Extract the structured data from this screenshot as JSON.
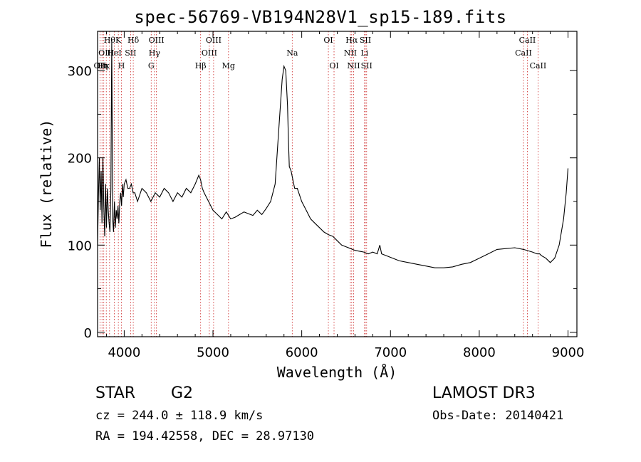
{
  "chart_data": {
    "type": "line",
    "title": "spec-56769-VB194N28V1_sp15-189.fits",
    "xlabel": "Wavelength (Å)",
    "ylabel": "Flux (relative)",
    "xlim": [
      3700,
      9100
    ],
    "ylim": [
      -5,
      345
    ],
    "xticks": [
      4000,
      5000,
      6000,
      7000,
      8000,
      9000
    ],
    "yticks": [
      0,
      100,
      200,
      300
    ],
    "xtick_labels": [
      "4000",
      "5000",
      "6000",
      "7000",
      "8000",
      "9000"
    ],
    "ytick_labels": [
      "0",
      "100",
      "200",
      "300"
    ],
    "series": [
      {
        "name": "spectrum",
        "x": [
          3700,
          3710,
          3720,
          3730,
          3740,
          3750,
          3760,
          3770,
          3780,
          3790,
          3800,
          3810,
          3820,
          3830,
          3840,
          3850,
          3860,
          3870,
          3880,
          3890,
          3900,
          3910,
          3920,
          3930,
          3940,
          3950,
          3960,
          3970,
          3980,
          3990,
          4000,
          4020,
          4040,
          4060,
          4080,
          4100,
          4120,
          4150,
          4200,
          4250,
          4300,
          4350,
          4400,
          4450,
          4500,
          4550,
          4600,
          4650,
          4700,
          4750,
          4800,
          4840,
          4860,
          4880,
          4900,
          4950,
          5000,
          5050,
          5100,
          5150,
          5200,
          5250,
          5300,
          5350,
          5400,
          5450,
          5500,
          5550,
          5600,
          5650,
          5700,
          5740,
          5760,
          5780,
          5800,
          5820,
          5840,
          5850,
          5860,
          5880,
          5900,
          5920,
          5950,
          6000,
          6050,
          6100,
          6150,
          6200,
          6250,
          6300,
          6350,
          6400,
          6450,
          6500,
          6550,
          6600,
          6650,
          6700,
          6750,
          6800,
          6850,
          6880,
          6900,
          6950,
          7000,
          7100,
          7200,
          7300,
          7400,
          7500,
          7600,
          7700,
          7800,
          7900,
          8000,
          8100,
          8200,
          8300,
          8400,
          8500,
          8600,
          8650,
          8680,
          8700,
          8750,
          8800,
          8850,
          8900,
          8950,
          8980,
          9000
        ],
        "values": [
          100,
          155,
          200,
          140,
          185,
          125,
          200,
          145,
          110,
          170,
          120,
          165,
          140,
          125,
          115,
          165,
          335,
          130,
          115,
          150,
          120,
          140,
          130,
          145,
          125,
          150,
          160,
          145,
          170,
          155,
          170,
          175,
          165,
          165,
          170,
          160,
          160,
          150,
          165,
          160,
          150,
          160,
          155,
          165,
          160,
          150,
          160,
          155,
          165,
          160,
          170,
          180,
          175,
          165,
          160,
          150,
          140,
          135,
          130,
          138,
          130,
          132,
          135,
          138,
          136,
          134,
          140,
          135,
          142,
          150,
          170,
          230,
          260,
          290,
          305,
          300,
          260,
          220,
          190,
          185,
          175,
          165,
          165,
          150,
          140,
          130,
          125,
          120,
          115,
          112,
          110,
          105,
          100,
          98,
          96,
          94,
          93,
          92,
          90,
          92,
          90,
          100,
          90,
          88,
          86,
          82,
          80,
          78,
          76,
          74,
          74,
          75,
          78,
          80,
          85,
          90,
          95,
          96,
          97,
          95,
          92,
          90,
          90,
          88,
          85,
          80,
          85,
          100,
          130,
          160,
          188
        ]
      }
    ],
    "line_annotations": [
      {
        "wl": 3727,
        "row": 2,
        "label": "OII"
      },
      {
        "wl": 3750,
        "row": 2,
        "label": "Hη"
      },
      {
        "wl": 3770,
        "row": 2,
        "label": "Hκ"
      },
      {
        "wl": 3798,
        "row": 1,
        "label": "OIII"
      },
      {
        "wl": 3835,
        "row": 0,
        "label": "Hθ"
      },
      {
        "wl": 3889,
        "row": 1,
        "label": "HeI"
      },
      {
        "wl": 3934,
        "row": 0,
        "label": "K"
      },
      {
        "wl": 3969,
        "row": 2,
        "label": "H"
      },
      {
        "wl": 4072,
        "row": 1,
        "label": "SII"
      },
      {
        "wl": 4102,
        "row": 0,
        "label": "Hδ"
      },
      {
        "wl": 4304,
        "row": 2,
        "label": "G"
      },
      {
        "wl": 4341,
        "row": 1,
        "label": "Hγ"
      },
      {
        "wl": 4363,
        "row": 0,
        "label": "OIII"
      },
      {
        "wl": 4861,
        "row": 2,
        "label": "Hβ"
      },
      {
        "wl": 4959,
        "row": 1,
        "label": "OIII"
      },
      {
        "wl": 5007,
        "row": 0,
        "label": "OIII"
      },
      {
        "wl": 5175,
        "row": 2,
        "label": "Mg"
      },
      {
        "wl": 5893,
        "row": 1,
        "label": "Na"
      },
      {
        "wl": 6300,
        "row": 0,
        "label": "OI"
      },
      {
        "wl": 6364,
        "row": 2,
        "label": "OI"
      },
      {
        "wl": 6548,
        "row": 1,
        "label": "NII"
      },
      {
        "wl": 6563,
        "row": 0,
        "label": "Hα"
      },
      {
        "wl": 6584,
        "row": 2,
        "label": "NII"
      },
      {
        "wl": 6707,
        "row": 1,
        "label": "Li"
      },
      {
        "wl": 6717,
        "row": 0,
        "label": "SII"
      },
      {
        "wl": 6731,
        "row": 2,
        "label": "SII"
      },
      {
        "wl": 8498,
        "row": 1,
        "label": "CaII"
      },
      {
        "wl": 8542,
        "row": 0,
        "label": "CaII"
      },
      {
        "wl": 8662,
        "row": 2,
        "label": "CaII"
      }
    ]
  },
  "info": {
    "object_class": "STAR",
    "subclass": "G2",
    "survey": "LAMOST DR3",
    "cz": "cz = 244.0 ± 118.9 km/s",
    "obs_date": "Obs-Date: 20140421",
    "coords": "RA = 194.42558, DEC =  28.97130"
  },
  "colors": {
    "line_marker": "#cc2222",
    "spectrum": "#000000"
  }
}
